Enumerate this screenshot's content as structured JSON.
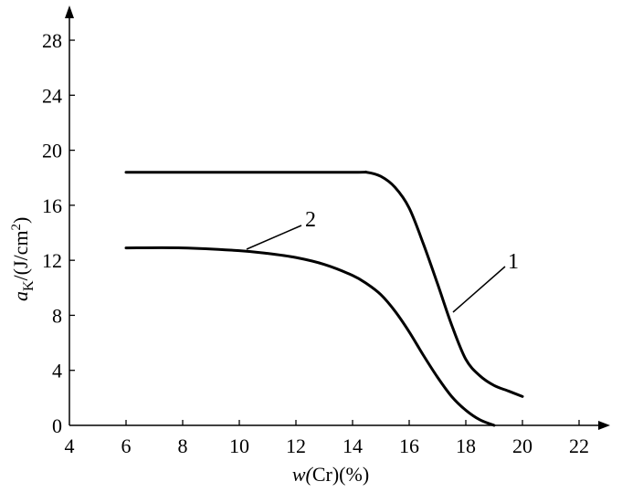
{
  "chart_data": {
    "type": "line",
    "title": "",
    "xlabel": "w(Cr)(%)",
    "ylabel_main": "a",
    "ylabel_sub": "K",
    "ylabel_unit": "/(J/cm",
    "ylabel_sup": "2",
    "ylabel_close": ")",
    "xlim": [
      4,
      22
    ],
    "ylim": [
      0,
      28
    ],
    "xticks": [
      "4",
      "6",
      "8",
      "10",
      "12",
      "14",
      "16",
      "18",
      "20",
      "22"
    ],
    "yticks": [
      "0",
      "4",
      "8",
      "12",
      "16",
      "20",
      "24",
      "28"
    ],
    "grid": false,
    "series": [
      {
        "name": "1",
        "x": [
          6,
          10,
          14,
          14.5,
          15,
          15.5,
          16,
          16.5,
          17,
          17.5,
          18,
          18.5,
          19,
          19.5,
          20
        ],
        "y": [
          18.4,
          18.4,
          18.4,
          18.4,
          18.1,
          17.3,
          15.8,
          13.2,
          10.3,
          7.3,
          4.8,
          3.6,
          2.9,
          2.5,
          2.1
        ]
      },
      {
        "name": "2",
        "x": [
          6,
          8,
          10,
          11,
          12,
          13,
          14,
          14.5,
          15,
          15.5,
          16,
          16.5,
          17,
          17.5,
          18,
          18.5,
          19
        ],
        "y": [
          12.9,
          12.9,
          12.7,
          12.5,
          12.2,
          11.7,
          10.9,
          10.3,
          9.5,
          8.3,
          6.8,
          5.1,
          3.5,
          2.1,
          1.1,
          0.4,
          0
        ]
      }
    ],
    "annotations": [
      "1",
      "2"
    ]
  }
}
